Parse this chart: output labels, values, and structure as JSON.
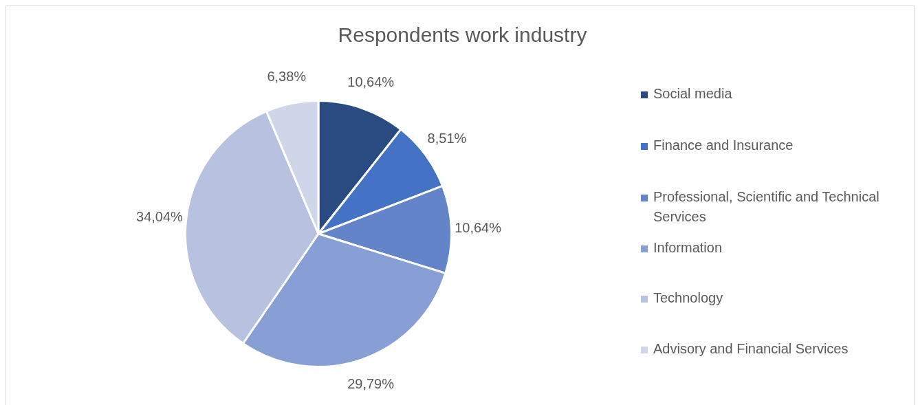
{
  "chart_data": {
    "type": "pie",
    "title": "Respondents work industry",
    "categories": [
      "Social media",
      "Finance and Insurance",
      "Professional, Scientific and Technical Services",
      "Information",
      "Technology",
      "Advisory and Financial Services"
    ],
    "values": [
      10.64,
      8.51,
      10.64,
      29.79,
      34.04,
      6.38
    ],
    "value_labels": [
      "10,64%",
      "8,51%",
      "10,64%",
      "29,79%",
      "34,04%",
      "6,38%"
    ],
    "colors": [
      "#2a4a82",
      "#4472c4",
      "#6384c8",
      "#879fd4",
      "#b6c2e0",
      "#d0d6ea"
    ],
    "legend": "right"
  }
}
